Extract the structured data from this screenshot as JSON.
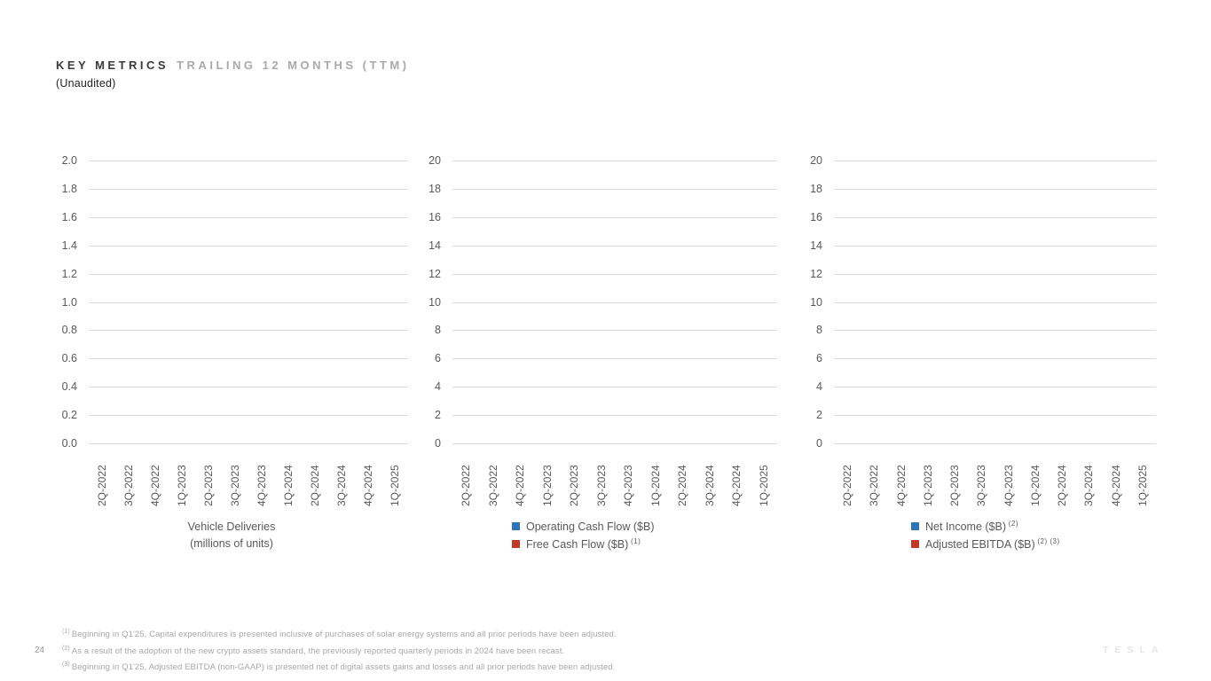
{
  "slide": {
    "title": {
      "primary": "KEY METRICS",
      "secondary": "TRAILING 12 MONTHS (TTM)"
    },
    "subtitle": "(Unaudited)",
    "page_number": "24",
    "brand": "TESLA"
  },
  "colors": {
    "series_blue": "#2e75b6",
    "series_red": "#c0392b",
    "gridline": "#d9d9d9",
    "axis_text": "#595959",
    "footnote_text": "#a8a8a8"
  },
  "quarters": [
    "2Q-2022",
    "3Q-2022",
    "4Q-2022",
    "1Q-2023",
    "2Q-2023",
    "3Q-2023",
    "4Q-2023",
    "1Q-2024",
    "2Q-2024",
    "3Q-2024",
    "4Q-2024",
    "1Q-2025"
  ],
  "charts": [
    {
      "name": "vehicle-deliveries",
      "y_ticks": [
        "2.0",
        "1.8",
        "1.6",
        "1.4",
        "1.2",
        "1.0",
        "0.8",
        "0.6",
        "0.4",
        "0.2",
        "0.0"
      ],
      "legend": {
        "lines": [
          "Vehicle Deliveries",
          "(millions of units)"
        ]
      }
    },
    {
      "name": "cash-flow",
      "y_ticks": [
        "20",
        "18",
        "16",
        "14",
        "12",
        "10",
        "8",
        "6",
        "4",
        "2",
        "0"
      ],
      "legend": {
        "items": [
          {
            "label": "Operating Cash Flow ($B)",
            "superscript": "",
            "color": "#2e75b6"
          },
          {
            "label": "Free Cash Flow ($B)",
            "superscript": "(1)",
            "color": "#c0392b"
          }
        ]
      }
    },
    {
      "name": "income-ebitda",
      "y_ticks": [
        "20",
        "18",
        "16",
        "14",
        "12",
        "10",
        "8",
        "6",
        "4",
        "2",
        "0"
      ],
      "legend": {
        "items": [
          {
            "label": "Net Income ($B)",
            "superscript": "(2)",
            "color": "#2e75b6"
          },
          {
            "label": "Adjusted EBITDA ($B)",
            "superscript": "(2) (3)",
            "color": "#c0392b"
          }
        ]
      }
    }
  ],
  "footnotes": [
    {
      "marker": "(1)",
      "text": "Beginning in Q1'25, Capital expenditures is presented inclusive of purchases of solar energy systems and all prior periods have been adjusted."
    },
    {
      "marker": "(2)",
      "text": "As a result of the adoption of the new crypto assets standard, the previously reported quarterly periods in 2024 have been recast."
    },
    {
      "marker": "(3)",
      "text": "Beginning in Q1'25, Adjusted EBITDA (non-GAAP) is presented net of digital assets gains and losses and all prior periods have been adjusted."
    }
  ],
  "chart_data": [
    {
      "type": "bar",
      "title": "Vehicle Deliveries (millions of units)",
      "categories": [
        "2Q-2022",
        "3Q-2022",
        "4Q-2022",
        "1Q-2023",
        "2Q-2023",
        "3Q-2023",
        "4Q-2023",
        "1Q-2024",
        "2Q-2024",
        "3Q-2024",
        "4Q-2024",
        "1Q-2025"
      ],
      "series": [
        {
          "name": "Vehicle Deliveries (millions of units)",
          "values": []
        }
      ],
      "xlabel": "",
      "ylabel": "",
      "ylim": [
        0.0,
        2.0
      ],
      "ytick_interval": 0.2,
      "grid": true,
      "legend_position": "bottom",
      "plot_empty": true
    },
    {
      "type": "bar",
      "title": "Operating Cash Flow / Free Cash Flow",
      "categories": [
        "2Q-2022",
        "3Q-2022",
        "4Q-2022",
        "1Q-2023",
        "2Q-2023",
        "3Q-2023",
        "4Q-2023",
        "1Q-2024",
        "2Q-2024",
        "3Q-2024",
        "4Q-2024",
        "1Q-2025"
      ],
      "series": [
        {
          "name": "Operating Cash Flow ($B)",
          "color": "#2e75b6",
          "values": []
        },
        {
          "name": "Free Cash Flow ($B) (1)",
          "color": "#c0392b",
          "values": []
        }
      ],
      "xlabel": "",
      "ylabel": "",
      "ylim": [
        0,
        20
      ],
      "ytick_interval": 2,
      "grid": true,
      "legend_position": "bottom",
      "plot_empty": true
    },
    {
      "type": "bar",
      "title": "Net Income / Adjusted EBITDA",
      "categories": [
        "2Q-2022",
        "3Q-2022",
        "4Q-2022",
        "1Q-2023",
        "2Q-2023",
        "3Q-2023",
        "4Q-2023",
        "1Q-2024",
        "2Q-2024",
        "3Q-2024",
        "4Q-2024",
        "1Q-2025"
      ],
      "series": [
        {
          "name": "Net Income ($B) (2)",
          "color": "#2e75b6",
          "values": []
        },
        {
          "name": "Adjusted EBITDA ($B) (2) (3)",
          "color": "#c0392b",
          "values": []
        }
      ],
      "xlabel": "",
      "ylabel": "",
      "ylim": [
        0,
        20
      ],
      "ytick_interval": 2,
      "grid": true,
      "legend_position": "bottom",
      "plot_empty": true
    }
  ]
}
